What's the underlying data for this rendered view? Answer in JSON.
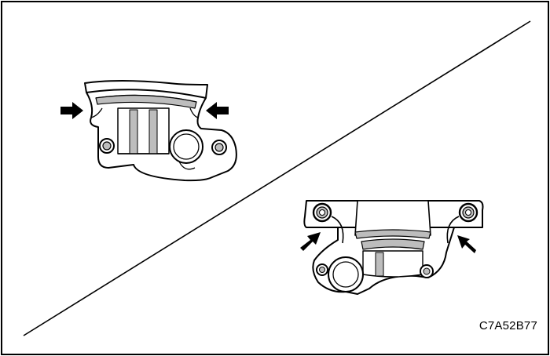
{
  "figure": {
    "code": "C7A52B77",
    "stroke_color": "#000000",
    "background_color": "#ffffff",
    "shading_color": "#bdbdbd"
  },
  "views": [
    {
      "name": "upper-left-bracket-view",
      "arrows": 2
    },
    {
      "name": "lower-right-bracket-view",
      "arrows": 2
    }
  ],
  "icons": [
    "arrow-right-icon",
    "arrow-left-icon",
    "arrow-up-right-icon",
    "arrow-up-left-icon"
  ]
}
